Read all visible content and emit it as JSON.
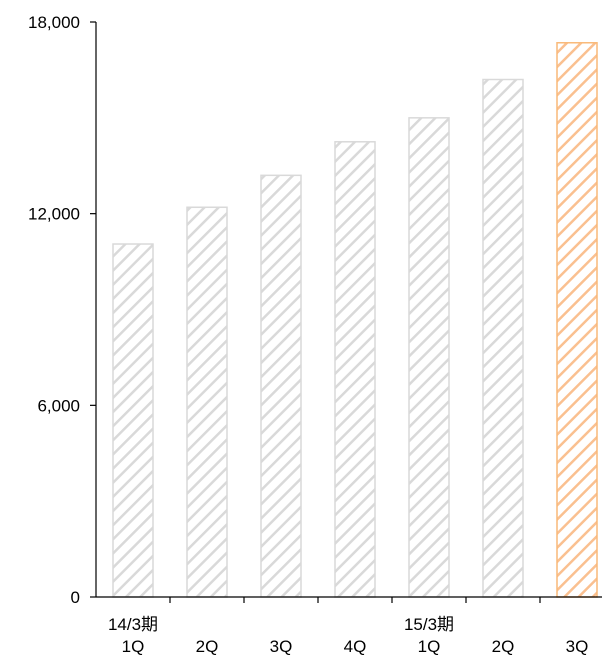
{
  "chart_data": {
    "type": "bar",
    "categories": [
      [
        "14/3期",
        "1Q"
      ],
      [
        "2Q"
      ],
      [
        "3Q"
      ],
      [
        "4Q"
      ],
      [
        "15/3期",
        "1Q"
      ],
      [
        "2Q"
      ],
      [
        "3Q"
      ]
    ],
    "values": [
      11050,
      12200,
      13200,
      14250,
      15000,
      16200,
      17350
    ],
    "highlight_index": 6,
    "ylim": [
      0,
      18000
    ],
    "yticks": [
      0,
      6000,
      12000,
      18000
    ],
    "ytick_labels": [
      "0",
      "6,000",
      "12,000",
      "18,000"
    ],
    "title": "",
    "xlabel": "",
    "ylabel": "",
    "grid": false,
    "legend": "none",
    "colors": {
      "bar_stripe": "#d9d9d9",
      "bar_border": "#d9d9d9",
      "highlight_stripe": "#fac090",
      "highlight_border": "#f9b978",
      "axis": "#000000"
    }
  }
}
